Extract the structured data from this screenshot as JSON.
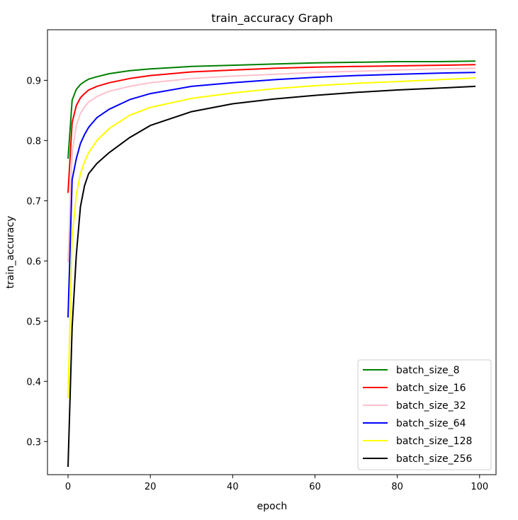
{
  "chart_data": {
    "type": "line",
    "title": "train_accuracy Graph",
    "xlabel": "epoch",
    "ylabel": "train_accuracy",
    "xlim": [
      -5,
      104
    ],
    "ylim": [
      0.245,
      0.984
    ],
    "xticks": [
      0,
      20,
      40,
      60,
      80,
      100
    ],
    "yticks": [
      0.3,
      0.4,
      0.5,
      0.6,
      0.7,
      0.8,
      0.9
    ],
    "grid": false,
    "legend_position": "lower-right",
    "x": [
      0,
      1,
      2,
      3,
      4,
      5,
      7,
      10,
      15,
      20,
      30,
      40,
      50,
      60,
      70,
      80,
      90,
      99
    ],
    "series": [
      {
        "name": "batch_size_8",
        "color": "#008000",
        "values": [
          0.77,
          0.867,
          0.885,
          0.893,
          0.898,
          0.902,
          0.906,
          0.911,
          0.916,
          0.919,
          0.923,
          0.925,
          0.927,
          0.929,
          0.93,
          0.931,
          0.931,
          0.932
        ]
      },
      {
        "name": "batch_size_16",
        "color": "#ff0000",
        "values": [
          0.713,
          0.83,
          0.858,
          0.871,
          0.878,
          0.884,
          0.89,
          0.896,
          0.903,
          0.908,
          0.914,
          0.917,
          0.92,
          0.922,
          0.923,
          0.924,
          0.925,
          0.926
        ]
      },
      {
        "name": "batch_size_32",
        "color": "#ffc0cb",
        "values": [
          0.598,
          0.78,
          0.825,
          0.845,
          0.856,
          0.864,
          0.873,
          0.882,
          0.89,
          0.896,
          0.903,
          0.907,
          0.91,
          0.913,
          0.915,
          0.917,
          0.919,
          0.92
        ]
      },
      {
        "name": "batch_size_64",
        "color": "#0000ff",
        "values": [
          0.506,
          0.735,
          0.77,
          0.795,
          0.81,
          0.822,
          0.838,
          0.852,
          0.868,
          0.878,
          0.89,
          0.896,
          0.901,
          0.905,
          0.908,
          0.91,
          0.912,
          0.913
        ]
      },
      {
        "name": "batch_size_128",
        "color": "#ffff00",
        "values": [
          0.372,
          0.64,
          0.71,
          0.745,
          0.765,
          0.78,
          0.8,
          0.82,
          0.842,
          0.855,
          0.87,
          0.879,
          0.886,
          0.891,
          0.895,
          0.898,
          0.901,
          0.904
        ]
      },
      {
        "name": "batch_size_256",
        "color": "#000000",
        "values": [
          0.258,
          0.49,
          0.61,
          0.69,
          0.725,
          0.745,
          0.762,
          0.78,
          0.805,
          0.825,
          0.848,
          0.861,
          0.869,
          0.875,
          0.88,
          0.884,
          0.887,
          0.89
        ]
      }
    ]
  }
}
